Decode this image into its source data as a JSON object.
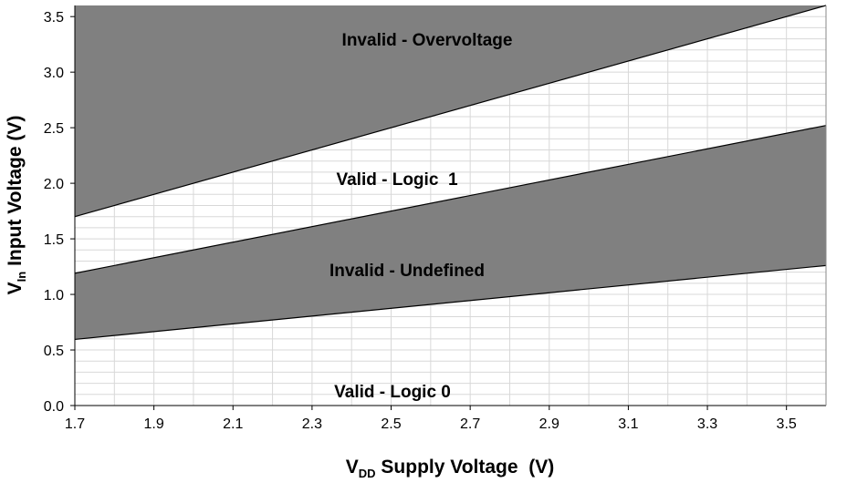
{
  "chart_data": {
    "type": "area",
    "x": [
      1.7,
      3.6
    ],
    "xlim": [
      1.7,
      3.6
    ],
    "ylim": [
      0.0,
      3.6
    ],
    "xticks": [
      "1.7",
      "1.9",
      "2.1",
      "2.3",
      "2.5",
      "2.7",
      "2.9",
      "3.1",
      "3.3",
      "3.5"
    ],
    "yticks": [
      "0.0",
      "0.5",
      "1.0",
      "1.5",
      "2.0",
      "2.5",
      "3.0",
      "3.5"
    ],
    "xlabel": {
      "main": "V",
      "sub": "DD",
      "rest": " Supply Voltage  (V)"
    },
    "ylabel": {
      "main": "V",
      "sub": "In",
      "rest": " Input Voltage (V)"
    },
    "grid": true,
    "boundaries": {
      "overvoltage_lower": {
        "x": [
          1.7,
          3.6
        ],
        "y": [
          1.7,
          3.6
        ]
      },
      "logic1_lower": {
        "x": [
          1.7,
          3.6
        ],
        "y": [
          1.19,
          2.52
        ]
      },
      "logic0_upper": {
        "x": [
          1.7,
          3.6
        ],
        "y": [
          0.595,
          1.26
        ]
      }
    },
    "regions": [
      {
        "label": "Invalid - Overvoltage",
        "color": "#808080"
      },
      {
        "label": "Valid - Logic  1",
        "color": "#ffffff"
      },
      {
        "label": "Invalid - Undefined",
        "color": "#808080"
      },
      {
        "label": "Valid - Logic 0",
        "color": "#ffffff"
      }
    ]
  }
}
